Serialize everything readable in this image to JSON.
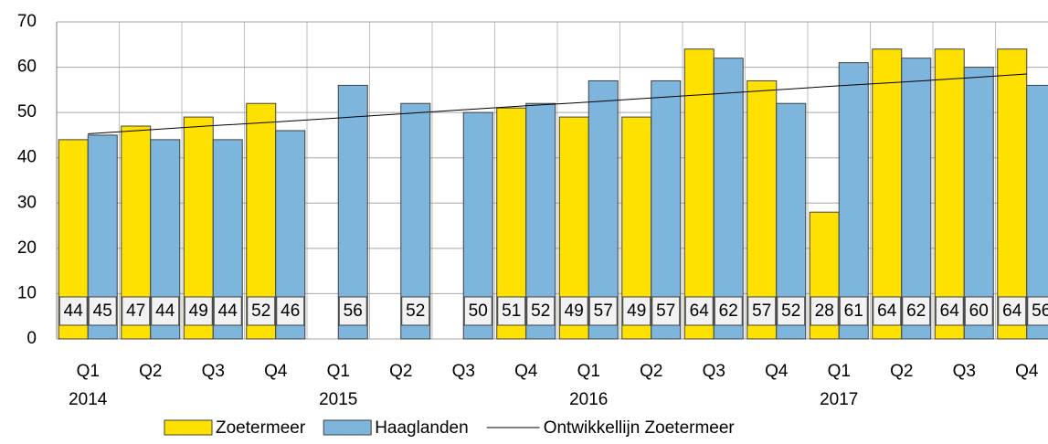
{
  "chart_data": {
    "type": "bar",
    "categories": [
      "Q1",
      "Q2",
      "Q3",
      "Q4",
      "Q1",
      "Q2",
      "Q3",
      "Q4",
      "Q1",
      "Q2",
      "Q3",
      "Q4",
      "Q1",
      "Q2",
      "Q3",
      "Q4"
    ],
    "category_groups": [
      "2014",
      null,
      null,
      null,
      "2015",
      null,
      null,
      null,
      "2016",
      null,
      null,
      null,
      "2017",
      null,
      null,
      null
    ],
    "series": [
      {
        "name": "Zoetermeer",
        "type": "bar",
        "color": "#ffe100",
        "values": [
          44,
          47,
          49,
          52,
          null,
          null,
          null,
          51,
          49,
          49,
          64,
          57,
          28,
          64,
          64,
          64
        ]
      },
      {
        "name": "Haaglanden",
        "type": "bar",
        "color": "#7db5dc",
        "values": [
          45,
          44,
          44,
          46,
          56,
          52,
          50,
          52,
          57,
          57,
          62,
          52,
          61,
          62,
          60,
          56
        ]
      },
      {
        "name": "Ontwikkellijn Zoetermeer",
        "type": "line",
        "color": "#000000",
        "values": [
          45.3,
          46.2,
          47.1,
          47.9,
          48.8,
          49.7,
          50.6,
          51.5,
          52.3,
          53.2,
          54.1,
          55.0,
          55.9,
          56.7,
          57.6,
          58.5
        ]
      }
    ],
    "ylim": [
      0,
      70
    ],
    "yticks": [
      0,
      10,
      20,
      30,
      40,
      50,
      60,
      70
    ],
    "grid": true,
    "legend": "bottom"
  }
}
